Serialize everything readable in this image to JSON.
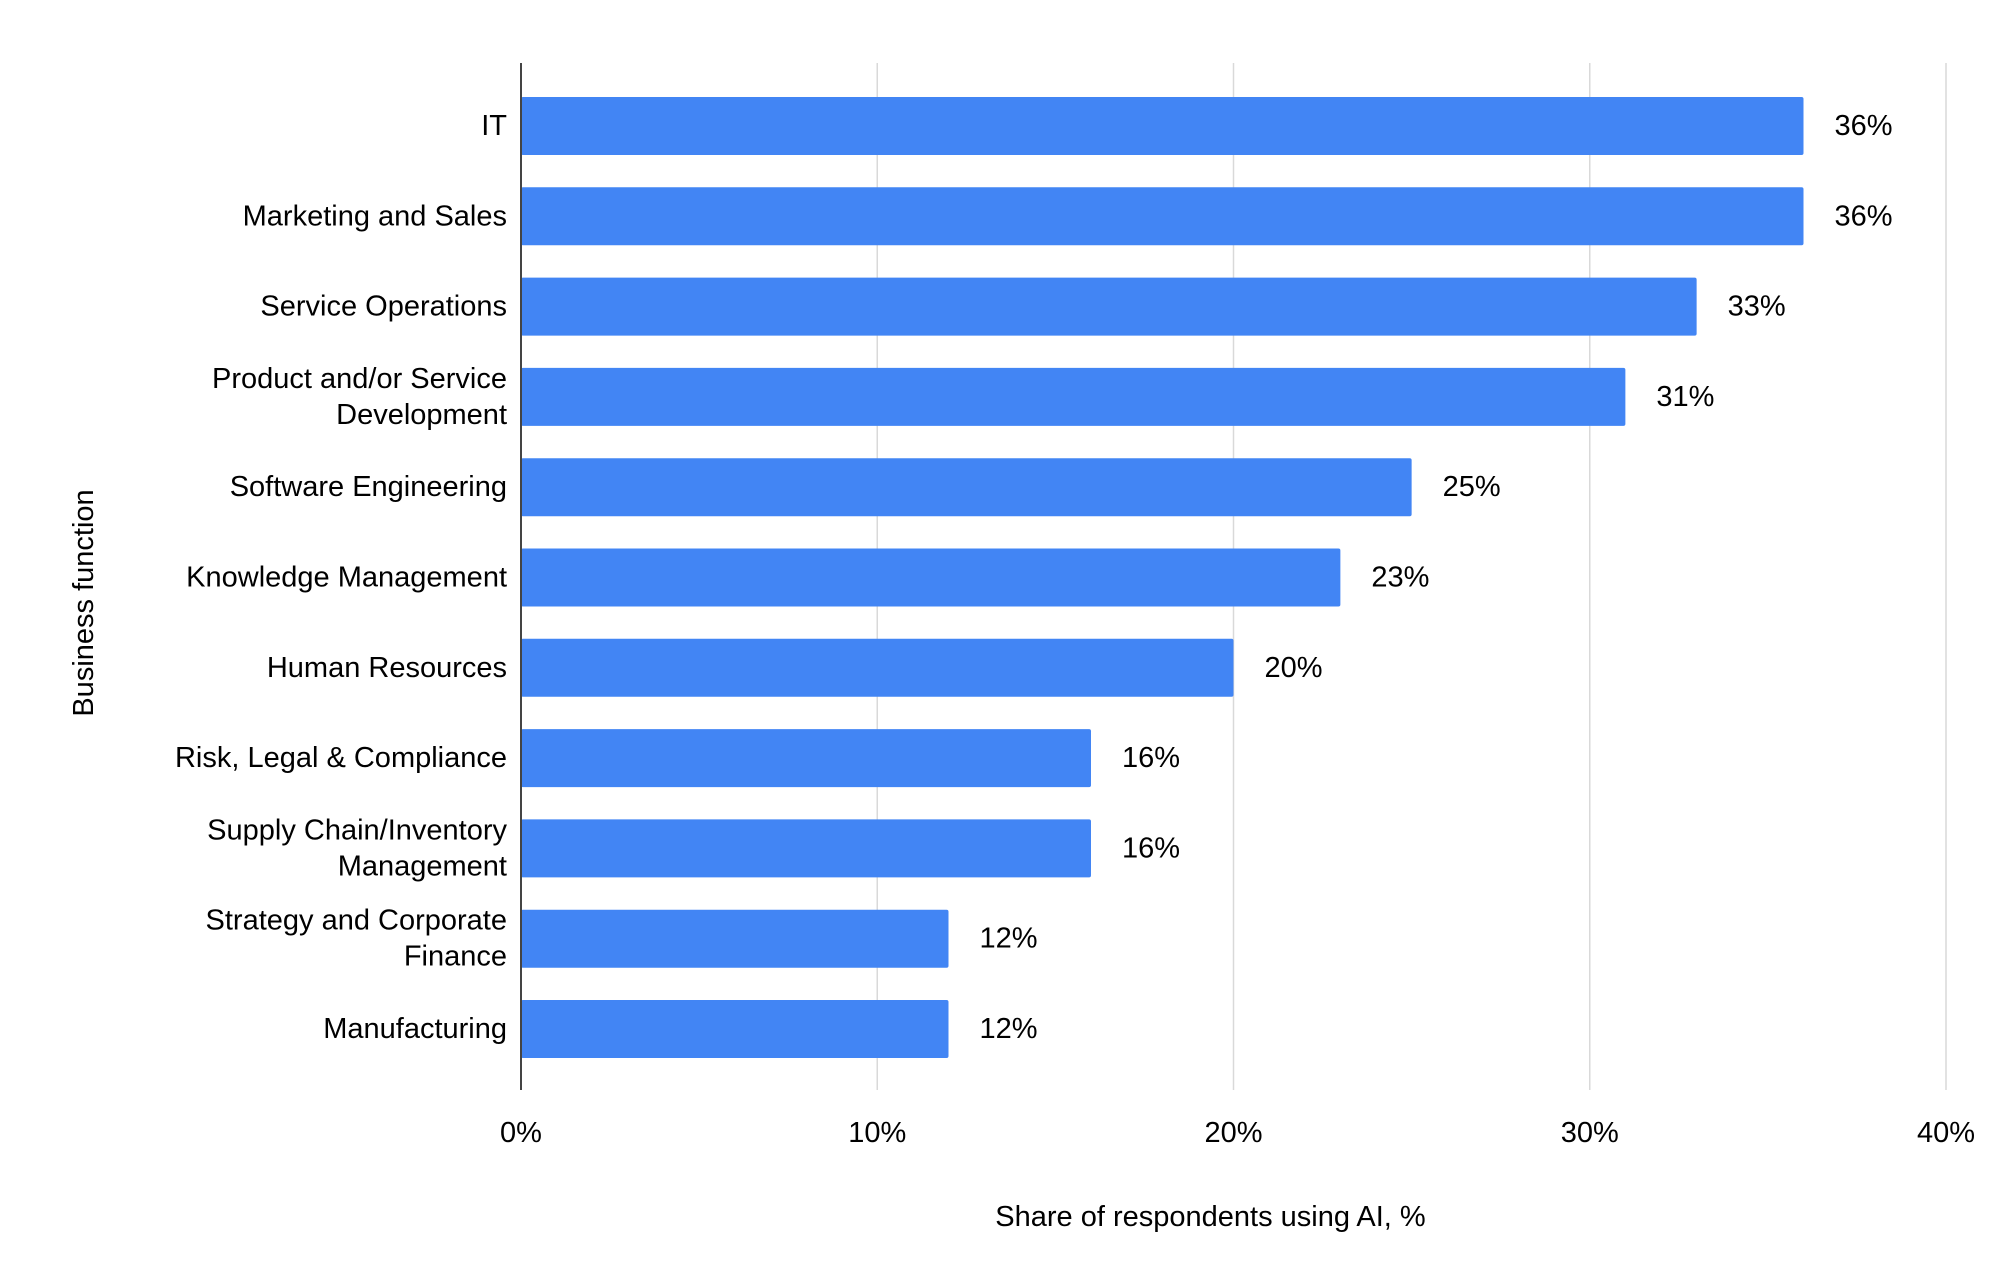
{
  "chart_data": {
    "type": "bar",
    "orientation": "horizontal",
    "categories": [
      "IT",
      "Marketing and Sales",
      "Service Operations",
      "Product and/or Service Development",
      "Software Engineering",
      "Knowledge Management",
      "Human Resources",
      "Risk, Legal & Compliance",
      "Supply Chain/Inventory Management",
      "Strategy and Corporate Finance",
      "Manufacturing"
    ],
    "category_lines": [
      [
        "IT"
      ],
      [
        "Marketing and Sales"
      ],
      [
        "Service Operations"
      ],
      [
        "Product and/or Service",
        "Development"
      ],
      [
        "Software Engineering"
      ],
      [
        "Knowledge Management"
      ],
      [
        "Human Resources"
      ],
      [
        "Risk, Legal & Compliance"
      ],
      [
        "Supply Chain/Inventory",
        "Management"
      ],
      [
        "Strategy and Corporate",
        "Finance"
      ],
      [
        "Manufacturing"
      ]
    ],
    "values": [
      36,
      36,
      33,
      31,
      25,
      23,
      20,
      16,
      16,
      12,
      12
    ],
    "value_labels": [
      "36%",
      "36%",
      "33%",
      "31%",
      "25%",
      "23%",
      "20%",
      "16%",
      "16%",
      "12%",
      "12%"
    ],
    "xlim": [
      0,
      40
    ],
    "xticks": [
      0,
      10,
      20,
      30,
      40
    ],
    "xtick_labels": [
      "0%",
      "10%",
      "20%",
      "30%",
      "40%"
    ],
    "xlabel": "Share of respondents using AI, %",
    "ylabel": "Business function",
    "title": "",
    "grid": "vertical",
    "legend": "none",
    "bar_color": "#4285F4",
    "grid_color": "#d9d9d9",
    "axis_color": "#444444"
  }
}
